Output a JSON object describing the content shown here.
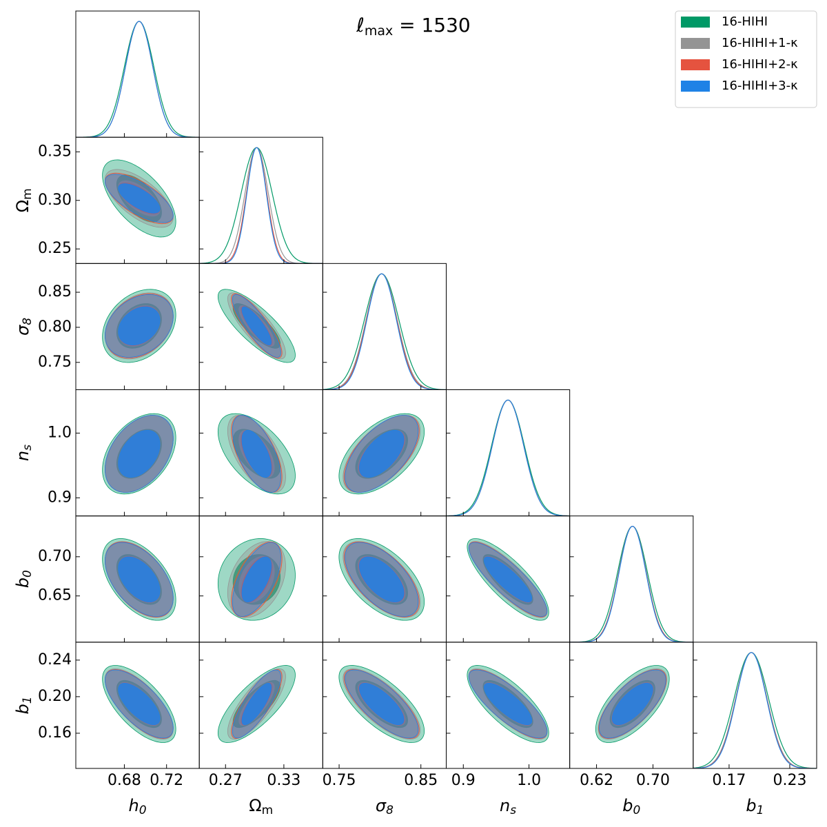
{
  "chart_data": {
    "type": "corner",
    "title": {
      "symbol": "ℓ",
      "sub": "max",
      "text": " = 1530"
    },
    "parameters": [
      {
        "label": {
          "symbol": "h",
          "sub": "0",
          "italic": true
        },
        "xlim": [
          0.634,
          0.751
        ],
        "xticks": [
          0.68,
          0.72
        ]
      },
      {
        "label": {
          "symbol": "Ω",
          "sub": "m",
          "italic": false
        },
        "xlim": [
          0.243,
          0.37
        ],
        "xticks": [
          0.27,
          0.33
        ],
        "ylim": [
          0.235,
          0.365
        ],
        "yticks": [
          0.25,
          {
            "value": 0.3,
            "label": "0.30"
          },
          0.35
        ]
      },
      {
        "label": {
          "symbol": "σ",
          "sub": "8",
          "italic": true
        },
        "xlim": [
          0.73,
          0.881
        ],
        "xticks": [
          0.75,
          0.85
        ],
        "ylim": [
          0.711,
          0.891
        ],
        "yticks": [
          0.75,
          {
            "value": 0.8,
            "label": "0.80"
          },
          0.85
        ]
      },
      {
        "label": {
          "symbol": "n",
          "sub": "s",
          "italic": true
        },
        "xlim": [
          0.874,
          1.062
        ],
        "xticks": [
          0.9,
          {
            "value": 1,
            "label": "1.0"
          }
        ],
        "ylim": [
          0.872,
          1.067
        ],
        "yticks": [
          0.9,
          {
            "value": 1,
            "label": "1.0"
          }
        ]
      },
      {
        "label": {
          "symbol": "b",
          "sub": "0",
          "italic": true
        },
        "xlim": [
          0.582,
          0.757
        ],
        "xticks": [
          0.62,
          {
            "value": 0.7,
            "label": "0.70"
          }
        ],
        "ylim": [
          0.591,
          0.752
        ],
        "yticks": [
          0.65,
          {
            "value": 0.7,
            "label": "0.70"
          }
        ]
      },
      {
        "label": {
          "symbol": "b",
          "sub": "1",
          "italic": true
        },
        "xlim": [
          0.1345,
          0.2566
        ],
        "xticks": [
          0.17,
          0.23
        ],
        "ylim": [
          0.1215,
          0.2596
        ],
        "yticks": [
          0.16,
          {
            "value": 0.2,
            "label": "0.20"
          },
          0.24
        ]
      }
    ],
    "series": [
      {
        "name": "16-HIHI",
        "color": "#009966",
        "mean": [
          0.694,
          0.302,
          0.802,
          0.968,
          0.671,
          0.192
        ],
        "sigma": [
          0.014,
          0.016,
          0.021,
          0.025,
          0.021,
          0.017
        ],
        "correlations": [
          [
            -0.6
          ],
          [
            0.3,
            -0.8
          ],
          [
            0.4,
            -0.55,
            0.55
          ],
          [
            -0.5,
            0.1,
            -0.55,
            -0.8
          ],
          [
            -0.65,
            0.75,
            -0.7,
            -0.75,
            0.65
          ]
        ]
      },
      {
        "name": "16-HIHI+1-κ",
        "color": "#949494",
        "mean": [
          0.694,
          0.302,
          0.802,
          0.968,
          0.671,
          0.192
        ],
        "sigma": [
          0.013,
          0.012,
          0.019,
          0.024,
          0.0195,
          0.0155
        ],
        "correlations": [
          [
            -0.65
          ],
          [
            0.3,
            -0.82
          ],
          [
            0.4,
            -0.6,
            0.6
          ],
          [
            -0.5,
            0.35,
            -0.6,
            -0.84
          ],
          [
            -0.7,
            0.78,
            -0.74,
            -0.8,
            0.7
          ]
        ]
      },
      {
        "name": "16-HIHI+2-κ",
        "color": "#e5533f",
        "mean": [
          0.694,
          0.302,
          0.802,
          0.968,
          0.671,
          0.192
        ],
        "sigma": [
          0.013,
          0.0105,
          0.0185,
          0.024,
          0.0193,
          0.0152
        ],
        "correlations": [
          [
            -0.68
          ],
          [
            0.3,
            -0.84
          ],
          [
            0.4,
            -0.6,
            0.6
          ],
          [
            -0.5,
            0.55,
            -0.6,
            -0.85
          ],
          [
            -0.7,
            0.8,
            -0.75,
            -0.8,
            0.7
          ]
        ]
      },
      {
        "name": "16-HIHI+3-κ",
        "color": "#1f82e6",
        "mean": [
          0.694,
          0.302,
          0.802,
          0.968,
          0.671,
          0.192
        ],
        "sigma": [
          0.013,
          0.01,
          0.018,
          0.024,
          0.019,
          0.015
        ],
        "correlations": [
          [
            -0.7
          ],
          [
            0.3,
            -0.85
          ],
          [
            0.4,
            -0.6,
            0.6
          ],
          [
            -0.5,
            0.6,
            -0.6,
            -0.85
          ],
          [
            -0.7,
            0.8,
            -0.75,
            -0.8,
            0.7
          ]
        ]
      }
    ],
    "legend": "upper right"
  }
}
